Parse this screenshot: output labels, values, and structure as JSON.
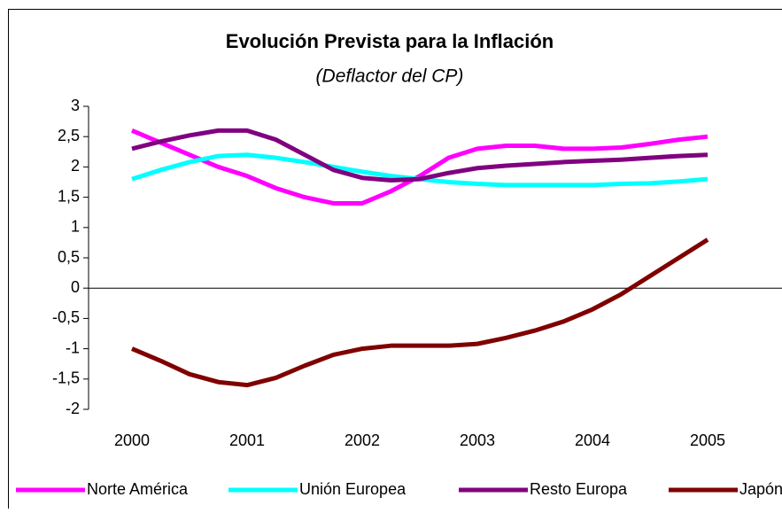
{
  "chart_data": {
    "type": "line",
    "title": "Evolución Prevista para la Inflación",
    "subtitle": "(Deflactor del CP)",
    "x": [
      2000,
      2000.25,
      2000.5,
      2000.75,
      2001,
      2001.25,
      2001.5,
      2001.75,
      2002,
      2002.25,
      2002.5,
      2002.75,
      2003,
      2003.25,
      2003.5,
      2003.75,
      2004,
      2004.25,
      2004.5,
      2004.75,
      2005
    ],
    "xlim": [
      1999.623,
      2005.646
    ],
    "xticks": [
      2000,
      2001,
      2002,
      2003,
      2004,
      2005
    ],
    "ylim": [
      -2,
      3
    ],
    "yticks": [
      {
        "value": -2,
        "label": "-2"
      },
      {
        "value": -1.5,
        "label": "-1,5"
      },
      -1,
      {
        "value": -0.5,
        "label": "-0,5"
      },
      0,
      {
        "value": 0.5,
        "label": "0,5"
      },
      1,
      {
        "value": 1.5,
        "label": "1,5"
      },
      2,
      {
        "value": 2.5,
        "label": "2,5"
      },
      3
    ],
    "legend": "bottom",
    "series": [
      {
        "name": "Norte América",
        "color": "#ff00ff",
        "values": [
          2.6,
          2.4,
          2.2,
          2.0,
          1.85,
          1.65,
          1.5,
          1.4,
          1.4,
          1.6,
          1.85,
          2.15,
          2.3,
          2.35,
          2.35,
          2.3,
          2.3,
          2.32,
          2.38,
          2.45,
          2.5
        ]
      },
      {
        "name": "Unión Europea",
        "color": "#00ffff",
        "values": [
          1.8,
          1.95,
          2.08,
          2.18,
          2.2,
          2.15,
          2.08,
          2.0,
          1.92,
          1.85,
          1.8,
          1.75,
          1.72,
          1.7,
          1.7,
          1.7,
          1.7,
          1.72,
          1.73,
          1.76,
          1.8
        ]
      },
      {
        "name": "Resto Europa",
        "color": "#800080",
        "values": [
          2.3,
          2.42,
          2.52,
          2.6,
          2.6,
          2.45,
          2.2,
          1.95,
          1.82,
          1.78,
          1.8,
          1.9,
          1.98,
          2.02,
          2.05,
          2.08,
          2.1,
          2.12,
          2.15,
          2.18,
          2.2
        ]
      },
      {
        "name": "Japón",
        "color": "#800000",
        "values": [
          -1.0,
          -1.2,
          -1.42,
          -1.55,
          -1.6,
          -1.48,
          -1.28,
          -1.1,
          -1.0,
          -0.95,
          -0.95,
          -0.95,
          -0.92,
          -0.82,
          -0.7,
          -0.55,
          -0.35,
          -0.1,
          0.2,
          0.5,
          0.8
        ]
      }
    ]
  }
}
